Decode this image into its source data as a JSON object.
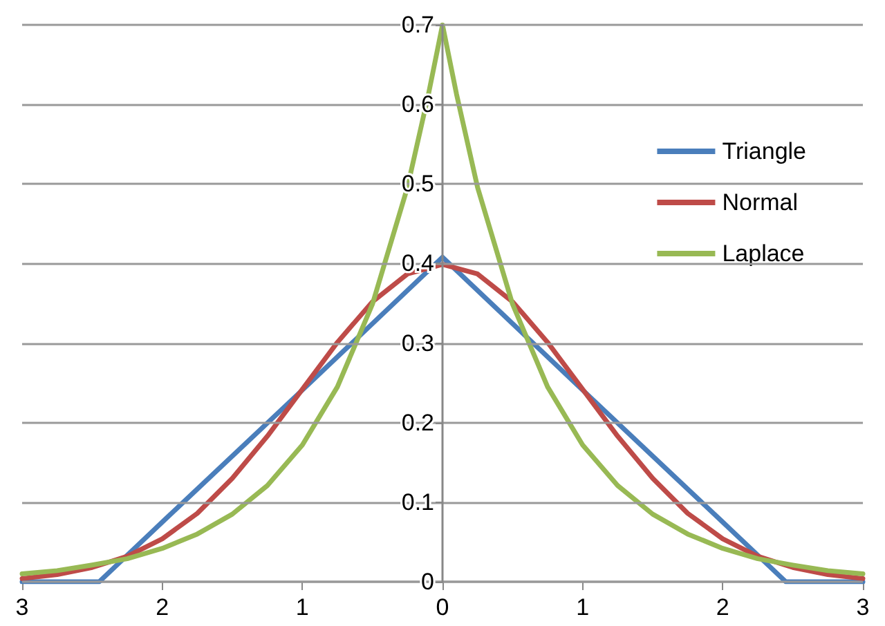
{
  "chart_data": {
    "type": "line",
    "xlim": [
      -3,
      3
    ],
    "ylim": [
      0,
      0.7
    ],
    "xticks": [
      {
        "value": -3,
        "label": "3"
      },
      {
        "value": -2,
        "label": "2"
      },
      {
        "value": -1,
        "label": "1"
      },
      0,
      1,
      2,
      3
    ],
    "yticks": [
      0,
      0.1,
      0.2,
      0.3,
      0.4,
      0.5,
      0.6,
      0.7
    ],
    "grid": "y",
    "legend": "right",
    "marker": "none",
    "line_style": "solid",
    "series": [
      {
        "name": "Triangle",
        "color": "#4a7ebb",
        "x": [
          -3,
          -2.45,
          -2,
          -1,
          0,
          1,
          2,
          2.45,
          3
        ],
        "values": [
          0,
          0,
          0.075,
          0.241,
          0.408,
          0.241,
          0.075,
          0,
          0
        ]
      },
      {
        "name": "Normal",
        "color": "#be4b48",
        "x": [
          -3,
          -2.75,
          -2.5,
          -2.25,
          -2,
          -1.75,
          -1.5,
          -1.25,
          -1,
          -0.75,
          -0.5,
          -0.25,
          0,
          0.25,
          0.5,
          0.75,
          1,
          1.25,
          1.5,
          1.75,
          2,
          2.25,
          2.5,
          2.75,
          3
        ],
        "values": [
          0.004,
          0.009,
          0.018,
          0.032,
          0.054,
          0.086,
          0.13,
          0.183,
          0.242,
          0.301,
          0.352,
          0.387,
          0.399,
          0.387,
          0.352,
          0.301,
          0.242,
          0.183,
          0.13,
          0.086,
          0.054,
          0.032,
          0.018,
          0.009,
          0.004
        ]
      },
      {
        "name": "Laplace",
        "color": "#98b954",
        "x": [
          -3,
          -2.75,
          -2.5,
          -2.25,
          -2,
          -1.75,
          -1.5,
          -1.25,
          -1,
          -0.75,
          -0.5,
          -0.25,
          -0.1,
          0,
          0.1,
          0.25,
          0.5,
          0.75,
          1,
          1.25,
          1.5,
          1.75,
          2,
          2.25,
          2.5,
          2.75,
          3
        ],
        "values": [
          0.01,
          0.014,
          0.021,
          0.029,
          0.042,
          0.06,
          0.085,
          0.121,
          0.172,
          0.245,
          0.349,
          0.496,
          0.613,
          0.7,
          0.613,
          0.496,
          0.349,
          0.245,
          0.172,
          0.121,
          0.085,
          0.06,
          0.042,
          0.029,
          0.021,
          0.014,
          0.01
        ]
      }
    ]
  }
}
